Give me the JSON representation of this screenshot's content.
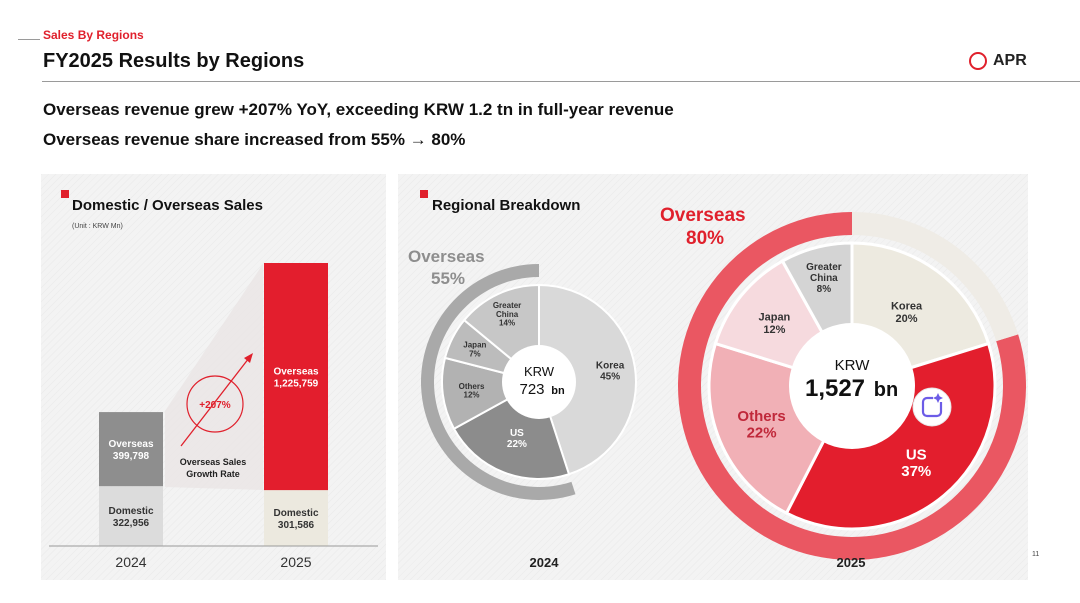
{
  "header": {
    "section_label": "Sales By Regions",
    "title": "FY2025 Results by Regions",
    "brand": "APR",
    "brand_color": "#e0202c"
  },
  "headlines": [
    "Overseas revenue grew +207% YoY, exceeding KRW 1.2 tn in full-year revenue",
    "Overseas revenue share increased from 55% → 80%"
  ],
  "page_number": "11",
  "left_panel": {
    "title": "Domestic / Overseas Sales",
    "unit": "(Unit : KRW Mn)",
    "growth": {
      "value": "+207%",
      "caption_line1": "Overseas Sales",
      "caption_line2": "Growth Rate"
    }
  },
  "right_panel": {
    "title": "Regional Breakdown"
  },
  "chart_data": [
    {
      "type": "bar",
      "title": "Domestic / Overseas Sales",
      "unit": "(Unit : KRW Mn)",
      "stacked": true,
      "categories": [
        "2024",
        "2025"
      ],
      "series": [
        {
          "name": "Domestic",
          "values": [
            322956,
            301586
          ],
          "labels": [
            "322,956",
            "301,586"
          ],
          "colors": [
            "#dcdcdc",
            "#ece9df"
          ]
        },
        {
          "name": "Overseas",
          "values": [
            399798,
            1225759
          ],
          "labels": [
            "399,798",
            "1,225,759"
          ],
          "colors": [
            "#8e8e8e",
            "#e31e2d"
          ]
        }
      ],
      "annotations": [
        "+207%",
        "Overseas Sales Growth Rate"
      ]
    },
    {
      "type": "pie",
      "donut": true,
      "year": "2024",
      "center_line1": "KRW",
      "center_value": "723",
      "center_unit": "bn",
      "overseas_label": "Overseas",
      "overseas_share": "55%",
      "overseas_value": 55,
      "slices": [
        {
          "label": "Korea",
          "value": 45,
          "label_text": "45%",
          "color": "#d9d9d9"
        },
        {
          "label": "US",
          "value": 22,
          "label_text": "22%",
          "color": "#8c8c8c"
        },
        {
          "label": "Others",
          "value": 12,
          "label_text": "12%",
          "color": "#b2b2b2"
        },
        {
          "label": "Japan",
          "value": 7,
          "label_text": "7%",
          "color": "#bcbcbc"
        },
        {
          "label": "Greater China",
          "label_line1": "Greater",
          "label_line2": "China",
          "value": 14,
          "label_text": "14%",
          "color": "#c7c7c7"
        }
      ],
      "outer_ring_color": "#a9a9a9"
    },
    {
      "type": "pie",
      "donut": true,
      "year": "2025",
      "center_line1": "KRW",
      "center_value": "1,527",
      "center_unit": "bn",
      "overseas_label": "Overseas",
      "overseas_share": "80%",
      "overseas_value": 80,
      "slices": [
        {
          "label": "Korea",
          "value": 20,
          "label_text": "20%",
          "color": "#edeae0"
        },
        {
          "label": "US",
          "value": 37,
          "label_text": "37%",
          "color": "#e31e2d"
        },
        {
          "label": "Others",
          "value": 22,
          "label_text": "22%",
          "color": "#f1b0b6"
        },
        {
          "label": "Japan",
          "value": 12,
          "label_text": "12%",
          "color": "#f6dade"
        },
        {
          "label": "Greater China",
          "label_line1": "Greater",
          "label_line2": "China",
          "value": 8,
          "label_text": "8%",
          "color": "#d4d4d4"
        }
      ],
      "outer_ring_color": "#ea5762"
    }
  ]
}
